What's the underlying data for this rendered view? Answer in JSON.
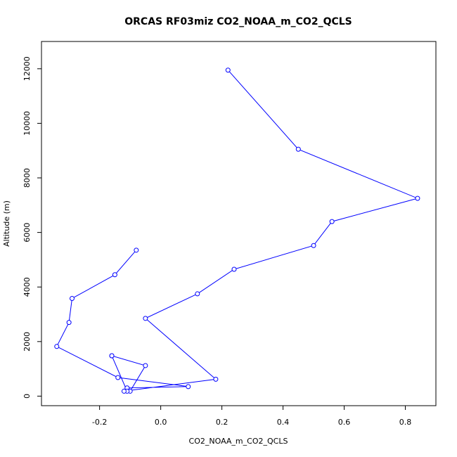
{
  "chart_data": {
    "type": "line",
    "title": "ORCAS RF03miz CO2_NOAA_m_CO2_QCLS",
    "xlabel": "CO2_NOAA_m_CO2_QCLS",
    "ylabel": "Altitude (m)",
    "xlim": [
      -0.39,
      0.9
    ],
    "ylim": [
      -350,
      13000
    ],
    "x_ticks": [
      -0.2,
      0.0,
      0.2,
      0.4,
      0.6,
      0.8
    ],
    "x_tick_labels": [
      "-0.2",
      "0.0",
      "0.2",
      "0.4",
      "0.6",
      "0.8"
    ],
    "y_ticks": [
      0,
      2000,
      4000,
      6000,
      8000,
      10000,
      12000
    ],
    "y_tick_labels": [
      "0",
      "2000",
      "4000",
      "6000",
      "8000",
      "10000",
      "12000"
    ],
    "grid": false,
    "legend": "none",
    "color": "#0000ff",
    "series": [
      {
        "x": [
          -0.08,
          -0.15,
          -0.29,
          -0.3,
          -0.34,
          -0.14,
          0.09,
          -0.11,
          -0.1,
          -0.05,
          -0.16,
          -0.16,
          -0.11,
          -0.12,
          0.18,
          -0.05,
          0.12,
          0.24,
          0.5,
          0.56,
          0.84,
          0.45,
          0.22
        ],
        "y": [
          5350,
          4450,
          3580,
          2700,
          1820,
          680,
          350,
          300,
          180,
          1120,
          1480,
          1480,
          180,
          180,
          620,
          2850,
          3750,
          4650,
          5520,
          6400,
          7250,
          9050,
          11950
        ]
      }
    ]
  }
}
